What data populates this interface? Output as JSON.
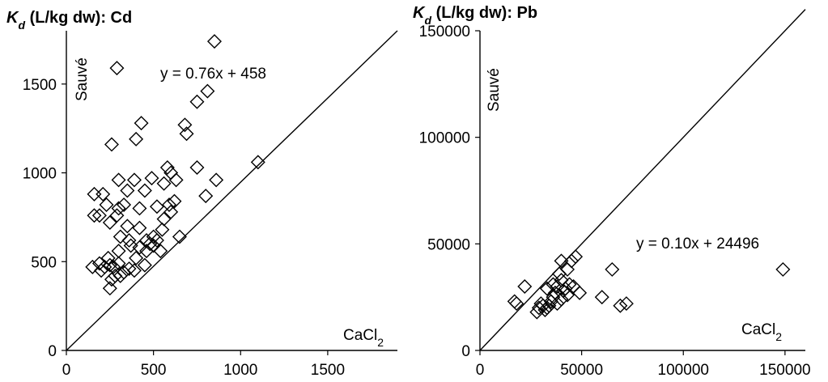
{
  "chart_data": [
    {
      "type": "scatter",
      "title_symbol": "K",
      "title_subscript": "d",
      "title_rest": " (L/kg dw): Cd",
      "xlabel_main": "CaCl",
      "xlabel_sub": "2",
      "ylabel": "Sauvé",
      "equation": "y = 0.76x + 458",
      "xlim": [
        0,
        1900
      ],
      "ylim": [
        0,
        1800
      ],
      "xticks": [
        0,
        500,
        1000,
        1500
      ],
      "yticks": [
        0,
        500,
        1000,
        1500
      ],
      "line_through": [
        [
          0,
          0
        ],
        [
          1900,
          1800
        ]
      ],
      "points": [
        [
          850,
          1740
        ],
        [
          290,
          1590
        ],
        [
          810,
          1460
        ],
        [
          750,
          1400
        ],
        [
          430,
          1280
        ],
        [
          680,
          1270
        ],
        [
          690,
          1220
        ],
        [
          400,
          1190
        ],
        [
          260,
          1160
        ],
        [
          1100,
          1060
        ],
        [
          580,
          1030
        ],
        [
          750,
          1030
        ],
        [
          300,
          960
        ],
        [
          490,
          970
        ],
        [
          600,
          1000
        ],
        [
          860,
          960
        ],
        [
          390,
          960
        ],
        [
          630,
          960
        ],
        [
          560,
          940
        ],
        [
          800,
          870
        ],
        [
          160,
          880
        ],
        [
          350,
          900
        ],
        [
          450,
          900
        ],
        [
          210,
          880
        ],
        [
          620,
          840
        ],
        [
          230,
          820
        ],
        [
          160,
          760
        ],
        [
          190,
          760
        ],
        [
          300,
          800
        ],
        [
          330,
          820
        ],
        [
          420,
          800
        ],
        [
          520,
          810
        ],
        [
          590,
          820
        ],
        [
          250,
          720
        ],
        [
          290,
          760
        ],
        [
          350,
          700
        ],
        [
          420,
          690
        ],
        [
          560,
          740
        ],
        [
          600,
          780
        ],
        [
          310,
          640
        ],
        [
          360,
          620
        ],
        [
          460,
          620
        ],
        [
          500,
          640
        ],
        [
          550,
          680
        ],
        [
          650,
          640
        ],
        [
          370,
          590
        ],
        [
          500,
          590
        ],
        [
          420,
          580
        ],
        [
          300,
          560
        ],
        [
          540,
          560
        ],
        [
          150,
          470
        ],
        [
          190,
          490
        ],
        [
          240,
          520
        ],
        [
          250,
          480
        ],
        [
          270,
          470
        ],
        [
          300,
          490
        ],
        [
          400,
          520
        ],
        [
          460,
          560
        ],
        [
          480,
          600
        ],
        [
          520,
          620
        ],
        [
          330,
          440
        ],
        [
          390,
          450
        ],
        [
          450,
          480
        ],
        [
          260,
          400
        ],
        [
          280,
          420
        ],
        [
          250,
          350
        ],
        [
          310,
          420
        ],
        [
          360,
          460
        ],
        [
          200,
          450
        ],
        [
          220,
          470
        ]
      ]
    },
    {
      "type": "scatter",
      "title_symbol": "K",
      "title_subscript": "d",
      "title_rest": " (L/kg dw): Pb",
      "xlabel_main": "CaCl",
      "xlabel_sub": "2",
      "ylabel": "Sauvé",
      "equation": "y = 0.10x + 24496",
      "xlim": [
        0,
        160000
      ],
      "ylim": [
        0,
        150000
      ],
      "xticks": [
        0,
        50000,
        100000,
        150000
      ],
      "yticks": [
        0,
        50000,
        100000,
        150000
      ],
      "line_through": [
        [
          0,
          0
        ],
        [
          160000,
          160000
        ]
      ],
      "points": [
        [
          149000,
          38000
        ],
        [
          65000,
          38000
        ],
        [
          60000,
          25000
        ],
        [
          72000,
          22000
        ],
        [
          69000,
          21000
        ],
        [
          49000,
          27000
        ],
        [
          47000,
          44000
        ],
        [
          45000,
          42000
        ],
        [
          40000,
          42000
        ],
        [
          43000,
          38000
        ],
        [
          44000,
          31000
        ],
        [
          42000,
          29000
        ],
        [
          40000,
          33000
        ],
        [
          38000,
          30000
        ],
        [
          37000,
          27000
        ],
        [
          36000,
          25000
        ],
        [
          35000,
          23000
        ],
        [
          34000,
          21000
        ],
        [
          33000,
          20000
        ],
        [
          32000,
          19000
        ],
        [
          30000,
          22000
        ],
        [
          28000,
          18000
        ],
        [
          38000,
          22000
        ],
        [
          40000,
          24000
        ],
        [
          22000,
          30000
        ],
        [
          17000,
          23000
        ],
        [
          18000,
          22000
        ],
        [
          33000,
          29000
        ],
        [
          36000,
          31000
        ],
        [
          39000,
          36000
        ],
        [
          29000,
          20000
        ],
        [
          31000,
          21000
        ],
        [
          41000,
          28000
        ],
        [
          43000,
          26000
        ],
        [
          46000,
          30000
        ]
      ]
    }
  ]
}
